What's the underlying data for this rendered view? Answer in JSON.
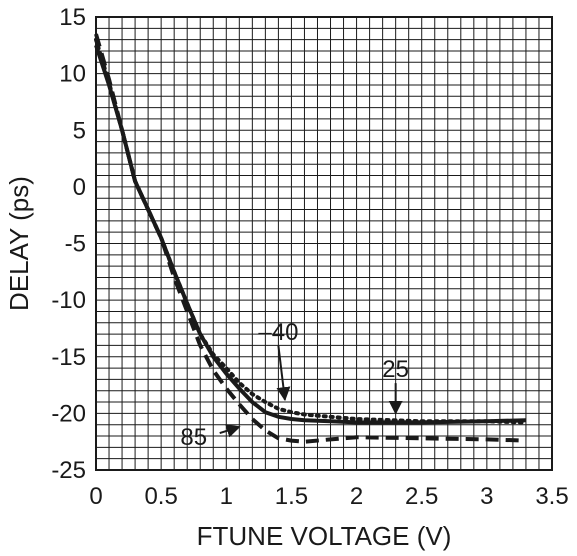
{
  "chart_data": {
    "type": "line",
    "title": "",
    "xlabel": "FTUNE VOLTAGE (V)",
    "ylabel": "DELAY (ps)",
    "xlim": [
      0,
      3.5
    ],
    "ylim": [
      -25,
      15
    ],
    "grid": true,
    "x_ticks": [
      0,
      0.5,
      1,
      1.5,
      2,
      2.5,
      3,
      3.5
    ],
    "x_tick_labels": [
      "0",
      "0.5",
      "1",
      "1.5",
      "2",
      "2.5",
      "3",
      "3.5"
    ],
    "y_ticks": [
      15,
      10,
      5,
      0,
      -5,
      -10,
      -15,
      -20,
      -25
    ],
    "y_tick_labels": [
      "15",
      "10",
      "5",
      "0",
      "-5",
      "-10",
      "-15",
      "-20",
      "-25"
    ],
    "line_color": "#1a1a1a",
    "series": [
      {
        "name": "25",
        "style": "solid",
        "x": [
          0,
          0.1,
          0.2,
          0.3,
          0.4,
          0.5,
          0.6,
          0.7,
          0.8,
          0.9,
          1.0,
          1.1,
          1.2,
          1.3,
          1.4,
          1.5,
          1.6,
          1.8,
          2.0,
          2.5,
          3.0,
          3.3
        ],
        "y": [
          12.5,
          9.0,
          5.0,
          0.5,
          -2.0,
          -4.5,
          -7.5,
          -10.3,
          -13.0,
          -15.0,
          -16.5,
          -17.8,
          -19.0,
          -19.9,
          -20.3,
          -20.5,
          -20.6,
          -20.7,
          -20.8,
          -20.8,
          -20.7,
          -20.6
        ]
      },
      {
        "name": "–40",
        "style": "dotted",
        "x": [
          0,
          0.1,
          0.2,
          0.3,
          0.4,
          0.5,
          0.6,
          0.7,
          0.8,
          0.9,
          1.0,
          1.1,
          1.2,
          1.3,
          1.4,
          1.5,
          1.6,
          1.8,
          2.0,
          2.5,
          3.0,
          3.3
        ],
        "y": [
          13.0,
          9.2,
          5.0,
          0.5,
          -2.0,
          -4.5,
          -7.5,
          -10.3,
          -13.0,
          -14.8,
          -16.0,
          -17.3,
          -18.3,
          -19.0,
          -19.6,
          -19.9,
          -20.1,
          -20.3,
          -20.5,
          -20.7,
          -20.7,
          -20.8
        ]
      },
      {
        "name": "85",
        "style": "dashed",
        "x": [
          0,
          0.1,
          0.2,
          0.3,
          0.4,
          0.5,
          0.6,
          0.7,
          0.8,
          0.9,
          1.0,
          1.1,
          1.2,
          1.3,
          1.4,
          1.5,
          1.6,
          1.8,
          2.0,
          2.5,
          3.0,
          3.3
        ],
        "y": [
          13.5,
          9.5,
          5.0,
          0.5,
          -2.0,
          -4.5,
          -8.0,
          -11.0,
          -14.0,
          -16.2,
          -17.8,
          -19.2,
          -20.5,
          -21.5,
          -22.2,
          -22.4,
          -22.5,
          -22.3,
          -22.1,
          -22.2,
          -22.3,
          -22.4
        ]
      }
    ],
    "annotations": [
      {
        "text": "–40",
        "series": "–40",
        "label_at": [
          1.4,
          -13.5
        ],
        "arrow_to": [
          1.45,
          -18.8
        ]
      },
      {
        "text": "25",
        "series": "25",
        "label_at": [
          2.3,
          -16.8
        ],
        "arrow_to": [
          2.3,
          -20.0
        ]
      },
      {
        "text": "85",
        "series": "85",
        "label_at": [
          0.75,
          -22.8
        ],
        "arrow_to": [
          1.1,
          -21.2
        ]
      }
    ]
  }
}
